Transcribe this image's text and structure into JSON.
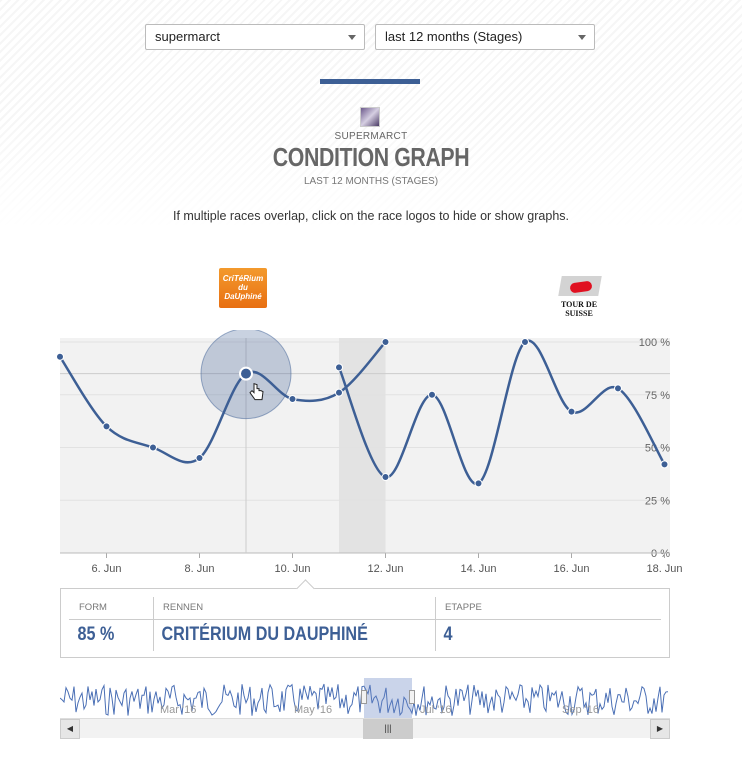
{
  "filters": {
    "rider_select": "supermarct",
    "period_select": "last 12 months (Stages)"
  },
  "header": {
    "rider_label": "SUPERMARCT",
    "title": "CONDITION GRAPH",
    "period_label": "LAST 12 MONTHS (STAGES)"
  },
  "info_text": "If multiple races overlap, click on the race logos to hide or show graphs.",
  "race_logos": [
    {
      "name": "Critérium du Dauphiné",
      "text": "CriTéRium du DaUphiné"
    },
    {
      "name": "Tour de Suisse",
      "text": "TOUR DE SUISSE"
    }
  ],
  "tooltip": {
    "form_header": "FORM",
    "form_value": "85 %",
    "race_header": "RENNEN",
    "race_value": "CRITÉRIUM DU DAUPHINÉ",
    "stage_header": "ETAPPE",
    "stage_value": "4"
  },
  "chart_data": {
    "type": "line",
    "x_unit": "date",
    "xlim": [
      "2016-06-05",
      "2016-06-18"
    ],
    "ylim": [
      0,
      100
    ],
    "y_ticks": [
      "0 %",
      "25 %",
      "50 %",
      "75 %",
      "100 %"
    ],
    "x_ticks": [
      "6. Jun",
      "8. Jun",
      "10. Jun",
      "12. Jun",
      "14. Jun",
      "16. Jun",
      "18. Jun"
    ],
    "series": [
      {
        "points": [
          [
            "2016-06-05",
            93
          ],
          [
            "2016-06-06",
            60
          ],
          [
            "2016-06-07",
            50
          ],
          [
            "2016-06-08",
            45
          ],
          [
            "2016-06-09",
            85
          ],
          [
            "2016-06-10",
            73
          ],
          [
            "2016-06-11",
            76
          ],
          [
            "2016-06-12",
            101
          ]
        ]
      },
      {
        "points": [
          [
            "2016-06-11",
            88
          ],
          [
            "2016-06-12",
            36
          ],
          [
            "2016-06-13",
            75
          ],
          [
            "2016-06-14",
            33
          ],
          [
            "2016-06-15",
            101
          ],
          [
            "2016-06-16",
            67
          ],
          [
            "2016-06-17",
            78
          ],
          [
            "2016-06-18",
            42
          ]
        ]
      }
    ],
    "highlighted_point": [
      "2016-06-09",
      85
    ],
    "shaded_band": [
      "2016-06-11",
      "2016-06-12"
    ],
    "color": "#3d5f95"
  },
  "navigator": {
    "labels": [
      "Mar '16",
      "May '16",
      "Jul '16",
      "Sep '16"
    ],
    "grip": "|||"
  }
}
